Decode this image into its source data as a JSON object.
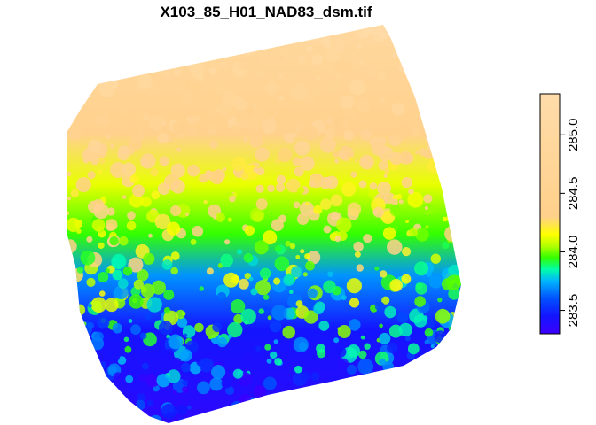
{
  "chart_data": {
    "type": "heatmap",
    "title": "X103_85_H01_NAD83_dsm.tif",
    "xlabel": "",
    "ylabel": "",
    "value_range": [
      283.3,
      285.35
    ],
    "legend": {
      "placement": "right",
      "ticks": [
        283.5,
        284.0,
        284.5,
        285.0
      ],
      "tick_labels": [
        "283.5",
        "284.0",
        "284.5",
        "285.0"
      ]
    },
    "color_stops": [
      {
        "value": 283.3,
        "color": "#3c00ff"
      },
      {
        "value": 283.45,
        "color": "#1414ff"
      },
      {
        "value": 283.6,
        "color": "#0050ff"
      },
      {
        "value": 283.75,
        "color": "#00b4ff"
      },
      {
        "value": 283.85,
        "color": "#00ffaa"
      },
      {
        "value": 283.95,
        "color": "#33ff00"
      },
      {
        "value": 284.05,
        "color": "#b4ff00"
      },
      {
        "value": 284.15,
        "color": "#ffff00"
      },
      {
        "value": 284.3,
        "color": "#ffd08a"
      },
      {
        "value": 285.35,
        "color": "#ffdcaa"
      }
    ],
    "elevation_trend": {
      "top_value": 285.0,
      "bottom_value": 283.35,
      "note_grid": "none"
    }
  }
}
